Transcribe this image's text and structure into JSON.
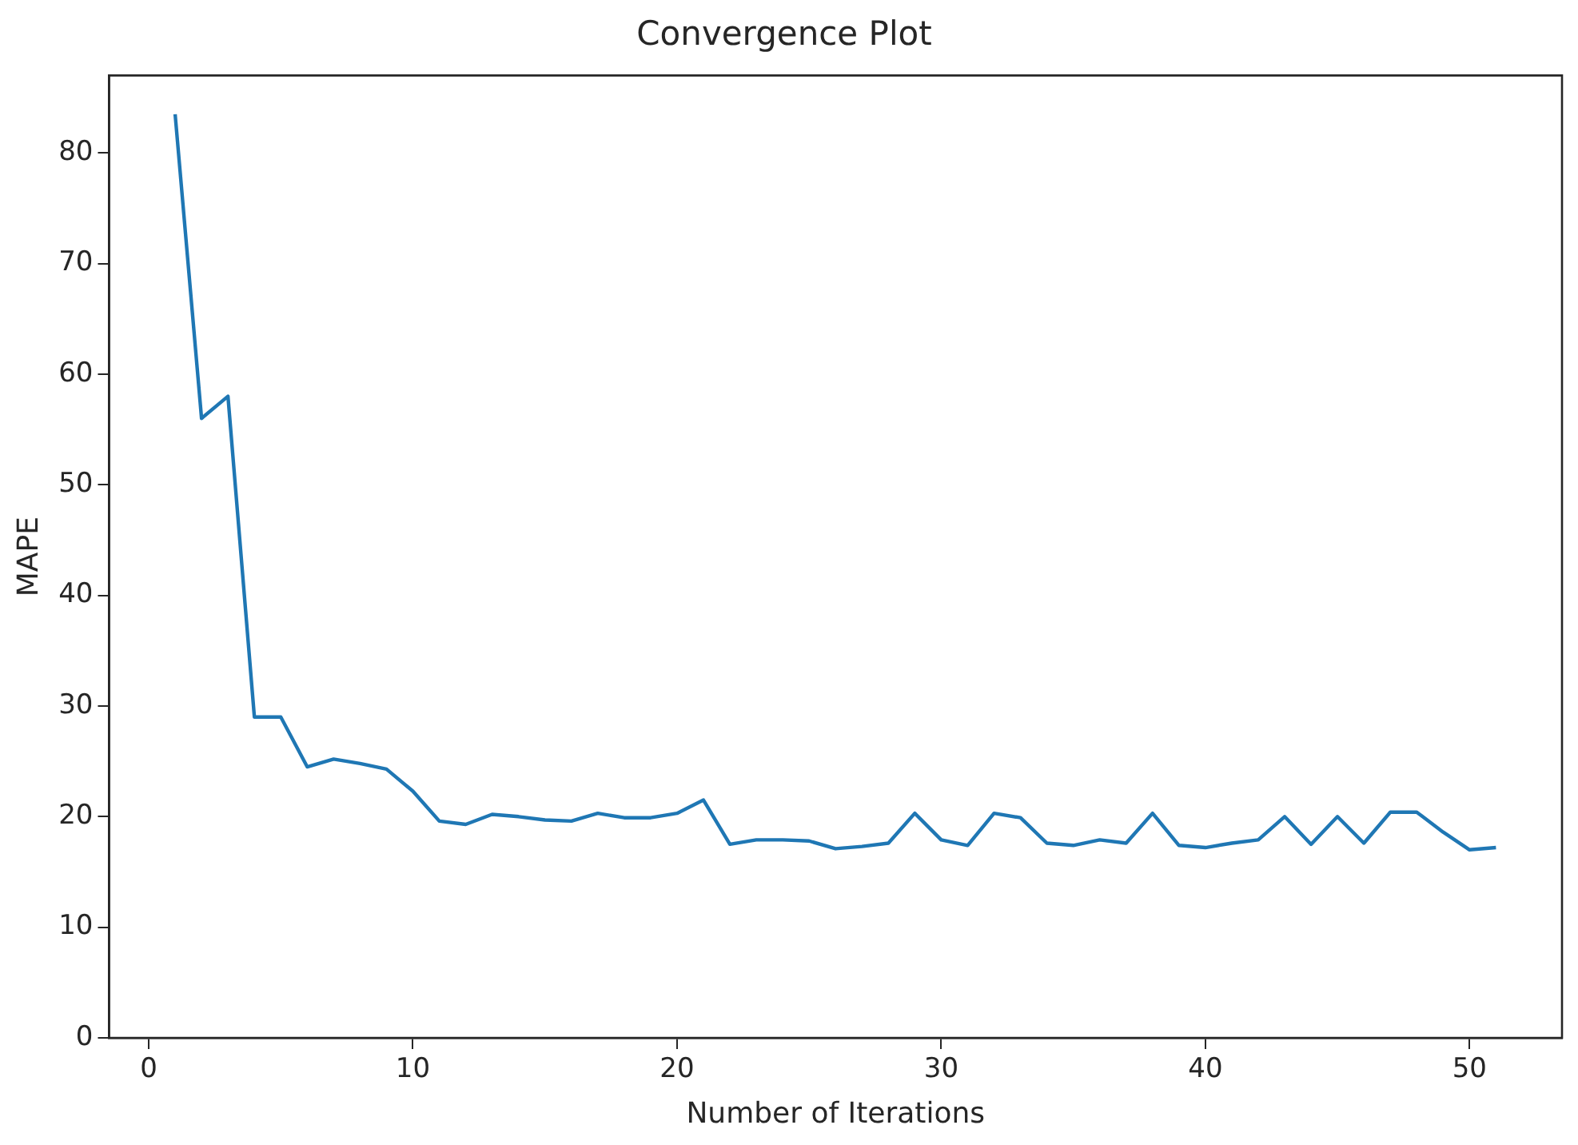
{
  "chart_data": {
    "type": "line",
    "title": "Convergence Plot",
    "xlabel": "Number of Iterations",
    "ylabel": "MAPE",
    "x": [
      1,
      2,
      3,
      4,
      5,
      6,
      7,
      8,
      9,
      10,
      11,
      12,
      13,
      14,
      15,
      16,
      17,
      18,
      19,
      20,
      21,
      22,
      23,
      24,
      25,
      26,
      27,
      28,
      29,
      30,
      31,
      32,
      33,
      34,
      35,
      36,
      37,
      38,
      39,
      40,
      41,
      42,
      43,
      44,
      45,
      46,
      47,
      48,
      49,
      50,
      51
    ],
    "series": [
      {
        "color": "#1f77b4",
        "values": [
          83.5,
          56,
          58,
          29,
          29,
          24.5,
          25.2,
          24.8,
          24.3,
          22.3,
          19.6,
          19.3,
          20.2,
          20,
          19.7,
          19.6,
          20.3,
          19.9,
          19.9,
          20.3,
          21.5,
          17.5,
          17.9,
          17.9,
          17.8,
          17.1,
          17.3,
          17.6,
          20.3,
          17.9,
          17.4,
          20.3,
          19.9,
          17.6,
          17.4,
          17.9,
          17.6,
          20.3,
          17.4,
          17.2,
          17.6,
          17.9,
          20,
          17.5,
          20,
          17.6,
          20.4,
          20.4,
          18.6,
          17,
          17.2
        ]
      }
    ],
    "xlim": [
      -1.5,
      53.5
    ],
    "xticks": [
      0,
      10,
      20,
      30,
      40,
      50
    ],
    "ylim": [
      0,
      87
    ],
    "yticks": [
      0,
      10,
      20,
      30,
      40,
      50,
      60,
      70,
      80
    ],
    "grid": false,
    "legend": false,
    "marker": "none",
    "line_style": "solid"
  }
}
